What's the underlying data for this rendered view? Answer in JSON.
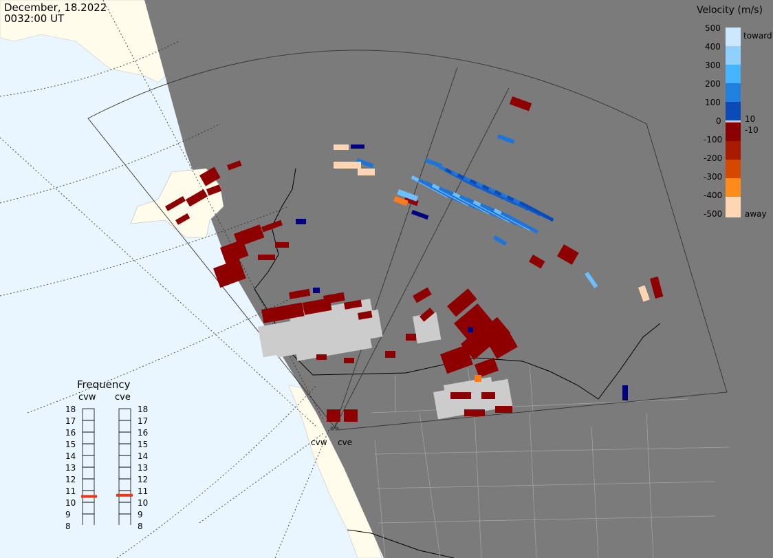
{
  "header": {
    "date": "December, 18.2022",
    "time": "0032:00 UT"
  },
  "legend": {
    "title": "Velocity (m/s)",
    "ticks": [
      "500",
      "400",
      "300",
      "200",
      "100",
      "0",
      "-100",
      "-200",
      "-300",
      "-400",
      "-500"
    ],
    "toward_label": "toward",
    "away_label": "away",
    "inner_pos_label": "10",
    "inner_neg_label": "-10",
    "colors": [
      "#cce8ff",
      "#a9d8ff",
      "#6cc0ff",
      "#34a3f5",
      "#1f74d8",
      "#0d46b3",
      "#00107a",
      "#7f0000",
      "#a10000",
      "#c22d00",
      "#e65c00",
      "#ff8c1a",
      "#ffd6b3"
    ]
  },
  "frequency": {
    "title": "Frequency",
    "radars": [
      {
        "name": "cvw",
        "value": 10.5
      },
      {
        "name": "cve",
        "value": 10.6
      }
    ],
    "levels": [
      "18",
      "17",
      "16",
      "15",
      "14",
      "13",
      "12",
      "11",
      "10",
      "9",
      "8"
    ],
    "indicator_color": "#e63a14"
  },
  "radars": {
    "left": "cvw",
    "right": "cve"
  },
  "colors": {
    "ocean": "#e9f5ff",
    "land": "#fffcec",
    "night": "#7b7b7b",
    "ground_scatter": "#cccccc",
    "red": "#8e0000",
    "blue_dark": "#000080",
    "blue": "#1f74d8",
    "blue_light": "#6cc0ff",
    "orange": "#ff7a1a",
    "peach": "#ffd6b3"
  }
}
